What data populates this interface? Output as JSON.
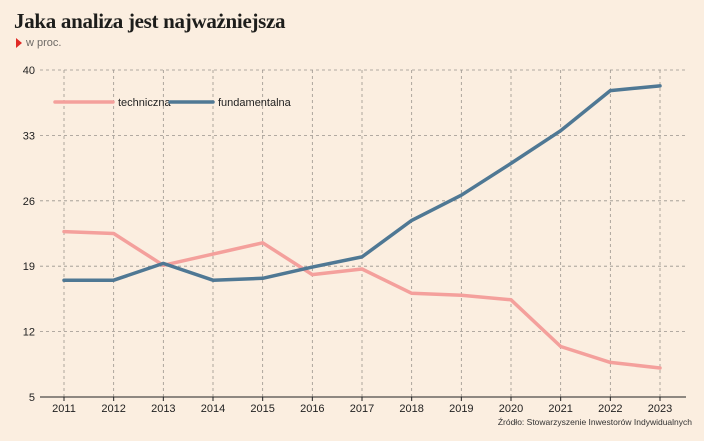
{
  "header": {
    "title": "Jaka analiza jest najważniejsza",
    "subtitle": "w proc."
  },
  "footer": {
    "source": "Źródło: Stowarzyszenie Inwestorów Indywidualnych"
  },
  "chart_data": {
    "type": "line",
    "title": "Jaka analiza jest najważniejsza",
    "subtitle": "w proc.",
    "x": [
      "2011",
      "2012",
      "2013",
      "2014",
      "2015",
      "2016",
      "2017",
      "2018",
      "2019",
      "2020",
      "2021",
      "2022",
      "2023"
    ],
    "y_ticks": [
      5,
      12,
      19,
      26,
      33,
      40
    ],
    "ylim": [
      5,
      40
    ],
    "grid": true,
    "legend_placement": "top-left",
    "series": [
      {
        "name": "techniczna",
        "color": "#f4a09c",
        "values": [
          22.7,
          22.5,
          19.1,
          20.3,
          21.5,
          18.1,
          18.7,
          16.1,
          15.9,
          15.4,
          10.4,
          8.7,
          8.1
        ]
      },
      {
        "name": "fundamentalna",
        "color": "#4f7894",
        "values": [
          17.5,
          17.5,
          19.3,
          17.5,
          17.7,
          18.9,
          20.0,
          23.9,
          26.6,
          30.0,
          33.5,
          37.8,
          38.3
        ]
      }
    ]
  }
}
